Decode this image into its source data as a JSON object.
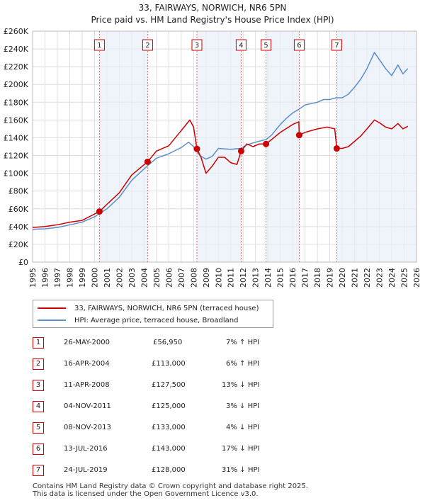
{
  "header": {
    "title": "33, FAIRWAYS, NORWICH, NR6 5PN",
    "subtitle": "Price paid vs. HM Land Registry's House Price Index (HPI)"
  },
  "chart_data": {
    "type": "line",
    "title": "33, FAIRWAYS, NORWICH, NR6 5PN",
    "subtitle": "Price paid vs. HM Land Registry's House Price Index (HPI)",
    "xlabel": "",
    "ylabel": "",
    "xlim": [
      1995,
      2026
    ],
    "ylim": [
      0,
      260000
    ],
    "x_ticks": [
      "1995",
      "1996",
      "1997",
      "1998",
      "1999",
      "2000",
      "2001",
      "2002",
      "2003",
      "2004",
      "2005",
      "2006",
      "2007",
      "2008",
      "2009",
      "2010",
      "2011",
      "2012",
      "2013",
      "2014",
      "2015",
      "2016",
      "2017",
      "2018",
      "2019",
      "2020",
      "2021",
      "2022",
      "2023",
      "2024",
      "2025",
      "2026"
    ],
    "y_ticks": [
      "£0",
      "£20K",
      "£40K",
      "£60K",
      "£80K",
      "£100K",
      "£120K",
      "£140K",
      "£160K",
      "£180K",
      "£200K",
      "£220K",
      "£240K",
      "£260K"
    ],
    "grid": true,
    "series": [
      {
        "name": "33, FAIRWAYS, NORWICH, NR6 5PN (terraced house)",
        "color": "#cc0000",
        "points": [
          [
            1995,
            39000
          ],
          [
            1996,
            40000
          ],
          [
            1997,
            42000
          ],
          [
            1998,
            45000
          ],
          [
            1999,
            47000
          ],
          [
            2000.4,
            56950
          ],
          [
            2001,
            65000
          ],
          [
            2002,
            78000
          ],
          [
            2003,
            98000
          ],
          [
            2004.29,
            113000
          ],
          [
            2005,
            125000
          ],
          [
            2006,
            131000
          ],
          [
            2007,
            148000
          ],
          [
            2007.7,
            160000
          ],
          [
            2008.0,
            152000
          ],
          [
            2008.27,
            127500
          ],
          [
            2008.6,
            118000
          ],
          [
            2009.0,
            100000
          ],
          [
            2009.5,
            108000
          ],
          [
            2010,
            118000
          ],
          [
            2010.5,
            118000
          ],
          [
            2011.0,
            112000
          ],
          [
            2011.5,
            110000
          ],
          [
            2011.84,
            125000
          ],
          [
            2012.3,
            133000
          ],
          [
            2012.8,
            130000
          ],
          [
            2013.3,
            133000
          ],
          [
            2013.85,
            133000
          ],
          [
            2014.3,
            138000
          ],
          [
            2015,
            146000
          ],
          [
            2016.0,
            155000
          ],
          [
            2016.5,
            158000
          ],
          [
            2016.53,
            143000
          ],
          [
            2017,
            146000
          ],
          [
            2017.5,
            148000
          ],
          [
            2018,
            150000
          ],
          [
            2018.8,
            152000
          ],
          [
            2019.4,
            150000
          ],
          [
            2019.56,
            128000
          ],
          [
            2020,
            128000
          ],
          [
            2020.5,
            130000
          ],
          [
            2021,
            136000
          ],
          [
            2021.5,
            142000
          ],
          [
            2022,
            150000
          ],
          [
            2022.6,
            160000
          ],
          [
            2023,
            157000
          ],
          [
            2023.5,
            152000
          ],
          [
            2024,
            150000
          ],
          [
            2024.5,
            156000
          ],
          [
            2024.9,
            150000
          ],
          [
            2025.3,
            153000
          ]
        ]
      },
      {
        "name": "HPI: Average price, terraced house, Broadland",
        "color": "#5b8fc9",
        "points": [
          [
            1995,
            37000
          ],
          [
            1996,
            37500
          ],
          [
            1997,
            39000
          ],
          [
            1998,
            42000
          ],
          [
            1999,
            45000
          ],
          [
            2000,
            51000
          ],
          [
            2001,
            60000
          ],
          [
            2002,
            73000
          ],
          [
            2003,
            92000
          ],
          [
            2004,
            105000
          ],
          [
            2005,
            117000
          ],
          [
            2006,
            122000
          ],
          [
            2007,
            129000
          ],
          [
            2007.6,
            135000
          ],
          [
            2008.0,
            130000
          ],
          [
            2008.5,
            120000
          ],
          [
            2009.0,
            116000
          ],
          [
            2009.5,
            119000
          ],
          [
            2010,
            128000
          ],
          [
            2011,
            127000
          ],
          [
            2011.8,
            128000
          ],
          [
            2012.3,
            132000
          ],
          [
            2013,
            135000
          ],
          [
            2013.85,
            138000
          ],
          [
            2014.3,
            143000
          ],
          [
            2015,
            155000
          ],
          [
            2015.5,
            162000
          ],
          [
            2016,
            168000
          ],
          [
            2016.5,
            172000
          ],
          [
            2017,
            177000
          ],
          [
            2018,
            180000
          ],
          [
            2018.5,
            183000
          ],
          [
            2019,
            183000
          ],
          [
            2019.5,
            185000
          ],
          [
            2020,
            185000
          ],
          [
            2020.5,
            189000
          ],
          [
            2021,
            197000
          ],
          [
            2021.5,
            206000
          ],
          [
            2022,
            218000
          ],
          [
            2022.6,
            236000
          ],
          [
            2023,
            228000
          ],
          [
            2023.5,
            218000
          ],
          [
            2024,
            210000
          ],
          [
            2024.5,
            222000
          ],
          [
            2024.9,
            212000
          ],
          [
            2025.3,
            218000
          ]
        ]
      }
    ],
    "markers": [
      {
        "label": "1",
        "x": 2000.4,
        "y": 56950
      },
      {
        "label": "2",
        "x": 2004.29,
        "y": 113000
      },
      {
        "label": "3",
        "x": 2008.27,
        "y": 127500
      },
      {
        "label": "4",
        "x": 2011.84,
        "y": 125000
      },
      {
        "label": "5",
        "x": 2013.85,
        "y": 133000
      },
      {
        "label": "6",
        "x": 2016.53,
        "y": 143000
      },
      {
        "label": "7",
        "x": 2019.56,
        "y": 128000
      }
    ]
  },
  "legend": {
    "property_label": "33, FAIRWAYS, NORWICH, NR6 5PN (terraced house)",
    "hpi_label": "HPI: Average price, terraced house, Broadland",
    "property_color": "#cc0000",
    "hpi_color": "#5b8fc9"
  },
  "transactions": [
    {
      "num": "1",
      "date": "26-MAY-2000",
      "price": "£56,950",
      "change": "7% ↑ HPI"
    },
    {
      "num": "2",
      "date": "16-APR-2004",
      "price": "£113,000",
      "change": "6% ↑ HPI"
    },
    {
      "num": "3",
      "date": "11-APR-2008",
      "price": "£127,500",
      "change": "13% ↓ HPI"
    },
    {
      "num": "4",
      "date": "04-NOV-2011",
      "price": "£125,000",
      "change": "3% ↓ HPI"
    },
    {
      "num": "5",
      "date": "08-NOV-2013",
      "price": "£133,000",
      "change": "4% ↓ HPI"
    },
    {
      "num": "6",
      "date": "13-JUL-2016",
      "price": "£143,000",
      "change": "17% ↓ HPI"
    },
    {
      "num": "7",
      "date": "24-JUL-2019",
      "price": "£128,000",
      "change": "31% ↓ HPI"
    }
  ],
  "footer": {
    "line1": "Contains HM Land Registry data © Crown copyright and database right 2025.",
    "line2": "This data is licensed under the Open Government Licence v3.0."
  }
}
